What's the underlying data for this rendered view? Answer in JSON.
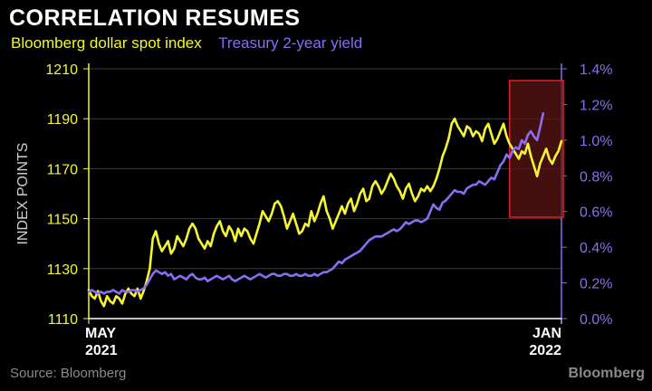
{
  "chart_data": {
    "type": "line",
    "title": "CORRELATION RESUMES",
    "ylabel_left": "INDEX POINTS",
    "x_ticks": [
      {
        "line1": "MAY",
        "line2": "2021"
      },
      {
        "line1": "JAN",
        "line2": "2022"
      }
    ],
    "y_left": {
      "ticks": [
        "1110",
        "1130",
        "1150",
        "1170",
        "1190",
        "1210"
      ],
      "range": [
        1110,
        1210
      ]
    },
    "y_right": {
      "ticks": [
        "0.0%",
        "0.2%",
        "0.4%",
        "0.6%",
        "0.8%",
        "1.0%",
        "1.2%",
        "1.4%"
      ],
      "range": [
        0.0,
        1.4
      ]
    },
    "grid": true,
    "series": [
      {
        "name": "Bloomberg dollar spot index",
        "axis": "left",
        "color": "#f5f532",
        "values": [
          1121.5,
          1119,
          1118,
          1121,
          1117,
          1115,
          1119,
          1117,
          1116,
          1119,
          1118,
          1116,
          1120,
          1122,
          1120,
          1119,
          1122,
          1118,
          1121,
          1125,
          1130,
          1142,
          1145,
          1140,
          1137,
          1139,
          1141,
          1136,
          1138,
          1143,
          1141,
          1139,
          1142,
          1146,
          1148,
          1146,
          1142,
          1140,
          1138,
          1141,
          1139,
          1144,
          1147,
          1149,
          1145,
          1143,
          1147,
          1145,
          1141,
          1146,
          1143,
          1146,
          1145,
          1142,
          1140,
          1144,
          1148,
          1153,
          1151,
          1149,
          1152,
          1156,
          1157,
          1155,
          1151,
          1146,
          1149,
          1152,
          1148,
          1144,
          1145,
          1148,
          1147,
          1153,
          1149,
          1152,
          1156,
          1159,
          1153,
          1150,
          1146,
          1149,
          1152,
          1155,
          1152,
          1156,
          1158,
          1153,
          1156,
          1160,
          1162,
          1157,
          1158,
          1163,
          1165,
          1163,
          1160,
          1162,
          1165,
          1168,
          1166,
          1163,
          1161,
          1158,
          1162,
          1164,
          1160,
          1157,
          1159,
          1162,
          1161,
          1163,
          1161,
          1163,
          1166,
          1170,
          1175,
          1178,
          1182,
          1188,
          1190,
          1187,
          1185,
          1183,
          1187,
          1186,
          1183,
          1185,
          1184,
          1181,
          1186,
          1188,
          1184,
          1180,
          1182,
          1185,
          1188,
          1183,
          1180,
          1178,
          1176,
          1174,
          1177,
          1176,
          1180,
          1175,
          1171,
          1167,
          1172,
          1175,
          1178,
          1174,
          1172,
          1175,
          1177,
          1181
        ]
      },
      {
        "name": "Treasury 2-year yield",
        "axis": "right",
        "color": "#8b6cf2",
        "values": [
          0.15,
          0.16,
          0.15,
          0.14,
          0.15,
          0.14,
          0.15,
          0.15,
          0.16,
          0.15,
          0.14,
          0.16,
          0.15,
          0.15,
          0.16,
          0.16,
          0.15,
          0.16,
          0.17,
          0.19,
          0.22,
          0.25,
          0.27,
          0.26,
          0.25,
          0.26,
          0.24,
          0.25,
          0.22,
          0.23,
          0.24,
          0.23,
          0.22,
          0.24,
          0.25,
          0.23,
          0.22,
          0.22,
          0.23,
          0.21,
          0.22,
          0.23,
          0.24,
          0.23,
          0.22,
          0.23,
          0.24,
          0.22,
          0.21,
          0.22,
          0.23,
          0.24,
          0.23,
          0.22,
          0.23,
          0.24,
          0.25,
          0.24,
          0.23,
          0.24,
          0.25,
          0.25,
          0.24,
          0.24,
          0.25,
          0.25,
          0.24,
          0.24,
          0.25,
          0.24,
          0.24,
          0.25,
          0.24,
          0.24,
          0.25,
          0.24,
          0.25,
          0.26,
          0.26,
          0.27,
          0.28,
          0.3,
          0.32,
          0.31,
          0.33,
          0.34,
          0.35,
          0.36,
          0.37,
          0.38,
          0.4,
          0.42,
          0.44,
          0.45,
          0.46,
          0.46,
          0.46,
          0.47,
          0.48,
          0.49,
          0.5,
          0.49,
          0.5,
          0.52,
          0.54,
          0.53,
          0.54,
          0.55,
          0.55,
          0.54,
          0.55,
          0.56,
          0.6,
          0.64,
          0.62,
          0.61,
          0.65,
          0.66,
          0.68,
          0.7,
          0.72,
          0.71,
          0.71,
          0.7,
          0.73,
          0.74,
          0.75,
          0.75,
          0.77,
          0.76,
          0.75,
          0.77,
          0.79,
          0.78,
          0.82,
          0.86,
          0.88,
          0.92,
          0.9,
          0.94,
          0.96,
          0.95,
          1.0,
          0.98,
          1.03,
          1.05,
          1.02,
          1.0,
          1.07,
          1.15
        ]
      }
    ],
    "highlight": {
      "from_index": 138,
      "to_index": 155,
      "color": "#e02020",
      "fill": "#5a1414"
    }
  },
  "source": "Source: Bloomberg",
  "brand": "Bloomberg"
}
